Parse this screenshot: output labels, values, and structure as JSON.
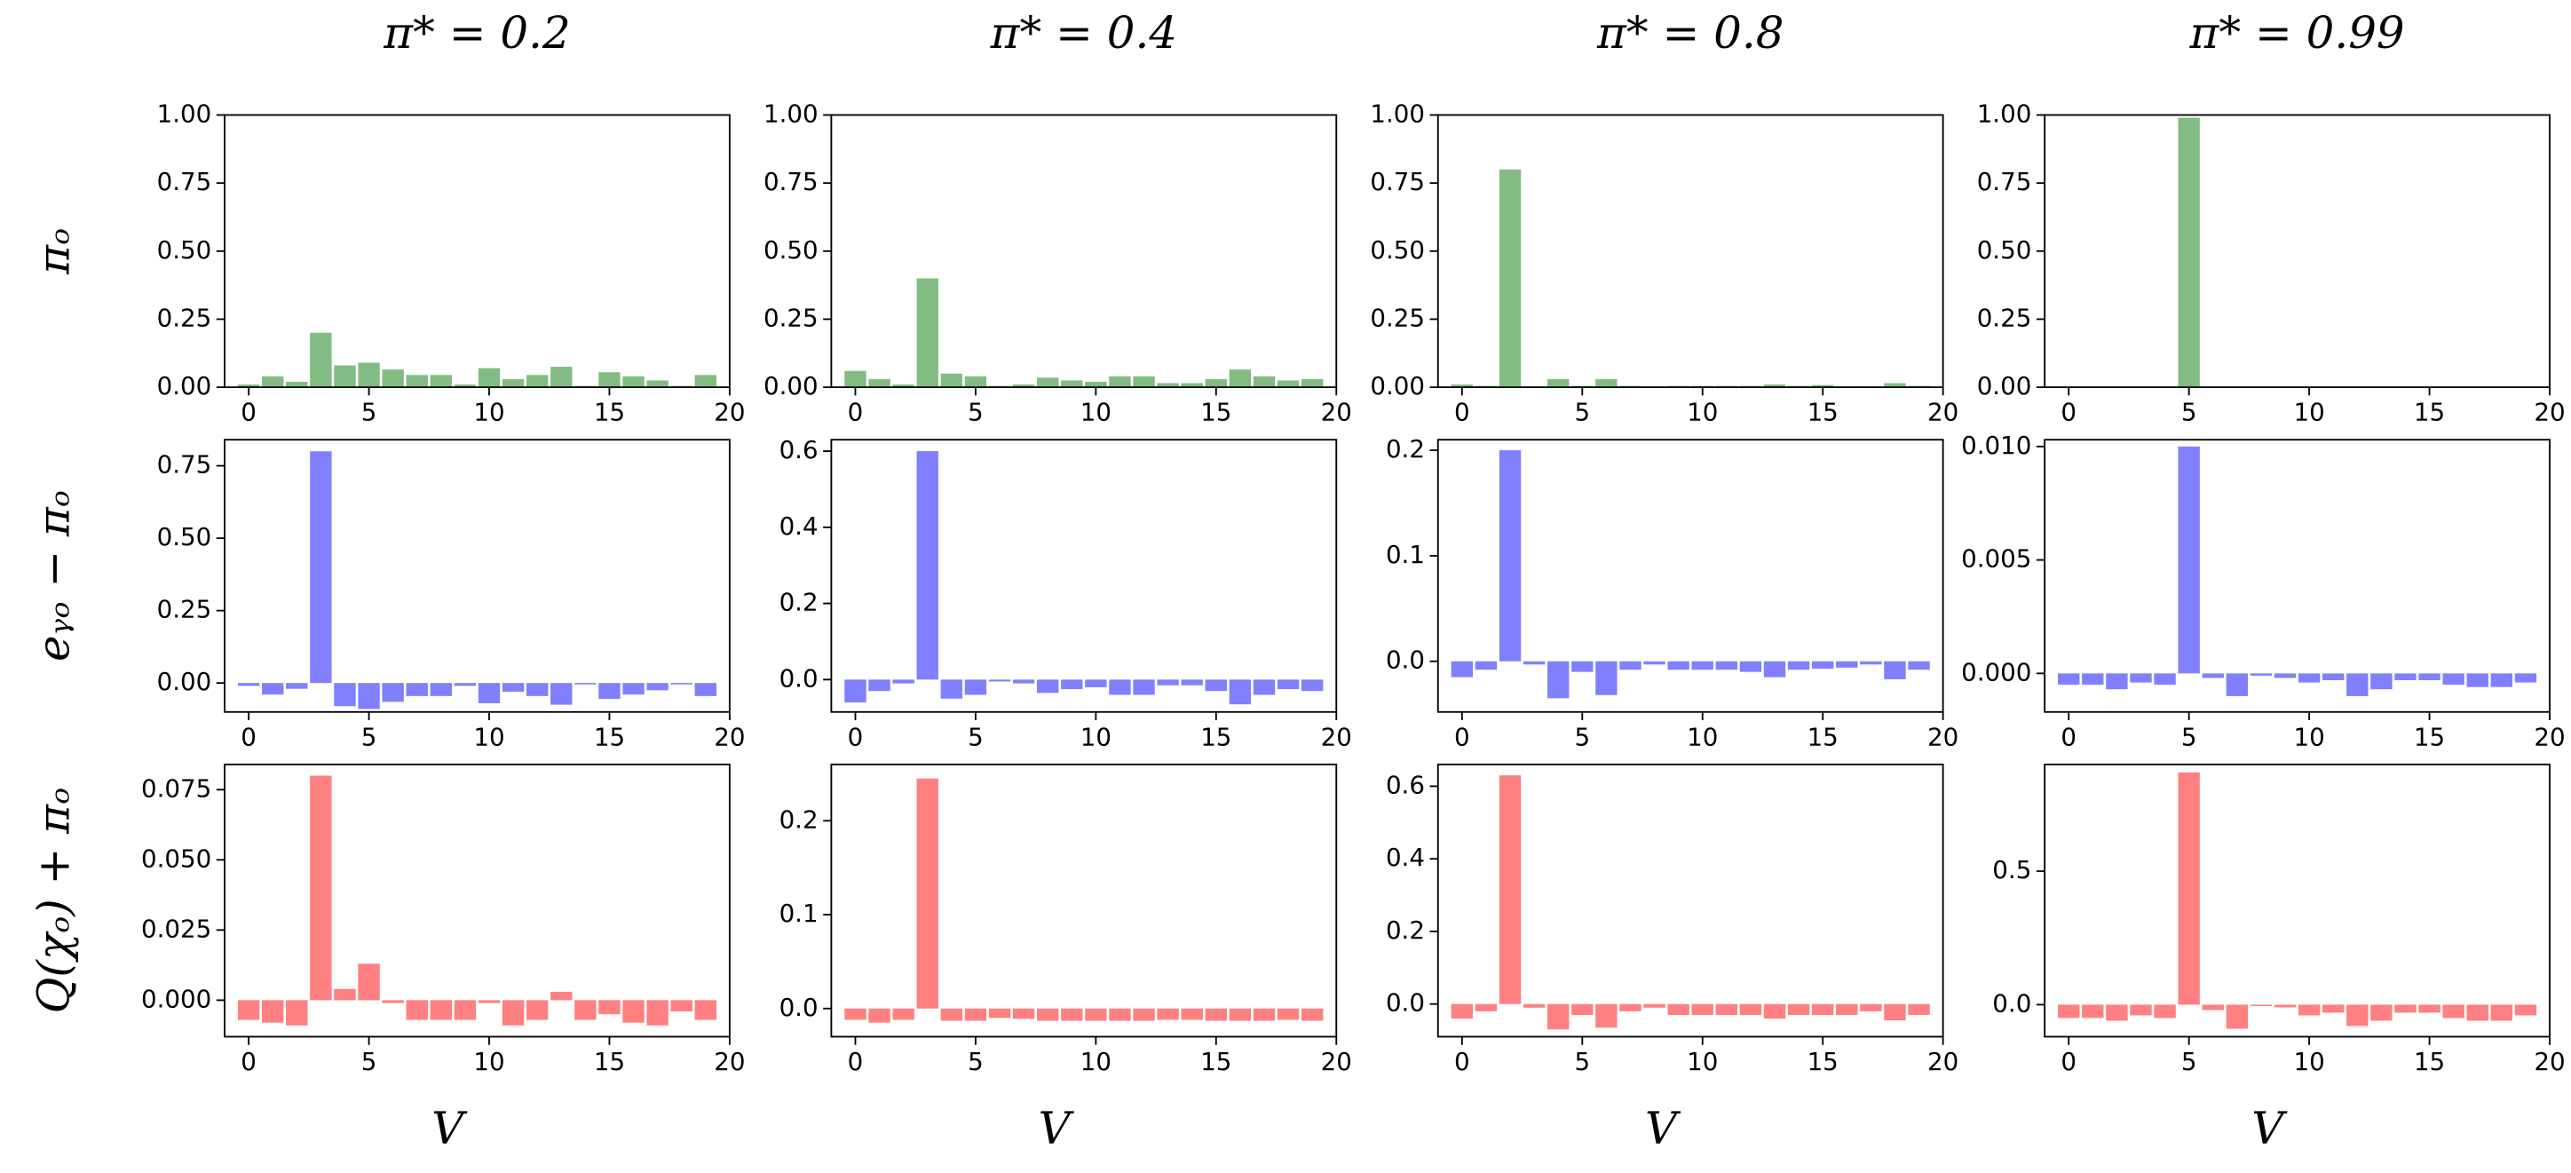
{
  "chart_data": [
    {
      "type": "bar",
      "title": "π* = 0.2",
      "ylabel": "πₒ",
      "color": "#82bc82",
      "x": [
        0,
        1,
        2,
        3,
        4,
        5,
        6,
        7,
        8,
        9,
        10,
        11,
        12,
        13,
        14,
        15,
        16,
        17,
        18,
        19
      ],
      "values": [
        0.01,
        0.04,
        0.02,
        0.2,
        0.08,
        0.09,
        0.065,
        0.045,
        0.045,
        0.01,
        0.07,
        0.03,
        0.045,
        0.075,
        0.005,
        0.055,
        0.04,
        0.025,
        0.005,
        0.045
      ],
      "xlim": [
        -1,
        20
      ],
      "xticks": [
        0,
        5,
        10,
        15,
        20
      ],
      "ylim": [
        0,
        1
      ],
      "yticks": [
        {
          "value": 0,
          "label": "0.00"
        },
        {
          "value": 0.25,
          "label": "0.25"
        },
        {
          "value": 0.5,
          "label": "0.50"
        },
        {
          "value": 0.75,
          "label": "0.75"
        },
        {
          "value": 1,
          "label": "1.00"
        }
      ]
    },
    {
      "type": "bar",
      "title": "π* = 0.4",
      "color": "#82bc82",
      "x": [
        0,
        1,
        2,
        3,
        4,
        5,
        6,
        7,
        8,
        9,
        10,
        11,
        12,
        13,
        14,
        15,
        16,
        17,
        18,
        19
      ],
      "values": [
        0.06,
        0.03,
        0.01,
        0.4,
        0.05,
        0.04,
        0.005,
        0.01,
        0.035,
        0.025,
        0.02,
        0.04,
        0.04,
        0.015,
        0.015,
        0.03,
        0.065,
        0.04,
        0.025,
        0.03
      ],
      "xlim": [
        -1,
        20
      ],
      "xticks": [
        0,
        5,
        10,
        15,
        20
      ],
      "ylim": [
        0,
        1
      ],
      "yticks": [
        {
          "value": 0,
          "label": "0.00"
        },
        {
          "value": 0.25,
          "label": "0.25"
        },
        {
          "value": 0.5,
          "label": "0.50"
        },
        {
          "value": 0.75,
          "label": "0.75"
        },
        {
          "value": 1,
          "label": "1.00"
        }
      ]
    },
    {
      "type": "bar",
      "title": "π* = 0.8",
      "color": "#82bc82",
      "x": [
        0,
        1,
        2,
        3,
        4,
        5,
        6,
        7,
        8,
        9,
        10,
        11,
        12,
        13,
        14,
        15,
        16,
        17,
        18,
        19
      ],
      "values": [
        0.01,
        0.005,
        0.8,
        0.003,
        0.03,
        0.005,
        0.03,
        0.005,
        0.003,
        0.005,
        0.005,
        0.005,
        0.005,
        0.01,
        0.005,
        0.008,
        0.003,
        0.003,
        0.015,
        0.005
      ],
      "xlim": [
        -1,
        20
      ],
      "xticks": [
        0,
        5,
        10,
        15,
        20
      ],
      "ylim": [
        0,
        1
      ],
      "yticks": [
        {
          "value": 0,
          "label": "0.00"
        },
        {
          "value": 0.25,
          "label": "0.25"
        },
        {
          "value": 0.5,
          "label": "0.50"
        },
        {
          "value": 0.75,
          "label": "0.75"
        },
        {
          "value": 1,
          "label": "1.00"
        }
      ]
    },
    {
      "type": "bar",
      "title": "π* = 0.99",
      "color": "#82bc82",
      "x": [
        0,
        1,
        2,
        3,
        4,
        5,
        6,
        7,
        8,
        9,
        10,
        11,
        12,
        13,
        14,
        15,
        16,
        17,
        18,
        19
      ],
      "values": [
        0,
        0,
        0,
        0,
        0,
        0.99,
        0,
        0,
        0,
        0,
        0,
        0,
        0,
        0,
        0,
        0,
        0,
        0,
        0,
        0
      ],
      "xlim": [
        -1,
        20
      ],
      "xticks": [
        0,
        5,
        10,
        15,
        20
      ],
      "ylim": [
        0,
        1
      ],
      "yticks": [
        {
          "value": 0,
          "label": "0.00"
        },
        {
          "value": 0.25,
          "label": "0.25"
        },
        {
          "value": 0.5,
          "label": "0.50"
        },
        {
          "value": 0.75,
          "label": "0.75"
        },
        {
          "value": 1,
          "label": "1.00"
        }
      ]
    },
    {
      "type": "bar",
      "ylabel": "eᵧₒ − πₒ",
      "color": "#8080ff",
      "x": [
        0,
        1,
        2,
        3,
        4,
        5,
        6,
        7,
        8,
        9,
        10,
        11,
        12,
        13,
        14,
        15,
        16,
        17,
        18,
        19
      ],
      "values": [
        -0.01,
        -0.04,
        -0.02,
        0.8,
        -0.08,
        -0.09,
        -0.065,
        -0.045,
        -0.045,
        -0.01,
        -0.07,
        -0.03,
        -0.045,
        -0.075,
        -0.005,
        -0.055,
        -0.04,
        -0.025,
        -0.005,
        -0.045
      ],
      "xlim": [
        -1,
        20
      ],
      "xticks": [
        0,
        5,
        10,
        15,
        20
      ],
      "ylim": [
        -0.1,
        0.84
      ],
      "yticks": [
        {
          "value": 0,
          "label": "0.00"
        },
        {
          "value": 0.25,
          "label": "0.25"
        },
        {
          "value": 0.5,
          "label": "0.50"
        },
        {
          "value": 0.75,
          "label": "0.75"
        }
      ]
    },
    {
      "type": "bar",
      "color": "#8080ff",
      "x": [
        0,
        1,
        2,
        3,
        4,
        5,
        6,
        7,
        8,
        9,
        10,
        11,
        12,
        13,
        14,
        15,
        16,
        17,
        18,
        19
      ],
      "values": [
        -0.06,
        -0.03,
        -0.01,
        0.6,
        -0.05,
        -0.04,
        -0.005,
        -0.01,
        -0.035,
        -0.025,
        -0.02,
        -0.04,
        -0.04,
        -0.015,
        -0.015,
        -0.03,
        -0.065,
        -0.04,
        -0.025,
        -0.03
      ],
      "xlim": [
        -1,
        20
      ],
      "xticks": [
        0,
        5,
        10,
        15,
        20
      ],
      "ylim": [
        -0.085,
        0.63
      ],
      "yticks": [
        {
          "value": 0,
          "label": "0.0"
        },
        {
          "value": 0.2,
          "label": "0.2"
        },
        {
          "value": 0.4,
          "label": "0.4"
        },
        {
          "value": 0.6,
          "label": "0.6"
        }
      ]
    },
    {
      "type": "bar",
      "color": "#8080ff",
      "x": [
        0,
        1,
        2,
        3,
        4,
        5,
        6,
        7,
        8,
        9,
        10,
        11,
        12,
        13,
        14,
        15,
        16,
        17,
        18,
        19
      ],
      "values": [
        -0.015,
        -0.008,
        0.2,
        -0.003,
        -0.035,
        -0.01,
        -0.032,
        -0.008,
        -0.003,
        -0.008,
        -0.008,
        -0.008,
        -0.01,
        -0.015,
        -0.008,
        -0.007,
        -0.006,
        -0.003,
        -0.017,
        -0.008
      ],
      "xlim": [
        -1,
        20
      ],
      "xticks": [
        0,
        5,
        10,
        15,
        20
      ],
      "ylim": [
        -0.048,
        0.21
      ],
      "yticks": [
        {
          "value": 0,
          "label": "0.0"
        },
        0.1,
        0.2
      ]
    },
    {
      "type": "bar",
      "color": "#8080ff",
      "x": [
        0,
        1,
        2,
        3,
        4,
        5,
        6,
        7,
        8,
        9,
        10,
        11,
        12,
        13,
        14,
        15,
        16,
        17,
        18,
        19
      ],
      "values": [
        -0.0005,
        -0.0005,
        -0.0007,
        -0.0004,
        -0.0005,
        0.01,
        -0.0002,
        -0.001,
        -0.0001,
        -0.0002,
        -0.0004,
        -0.0003,
        -0.001,
        -0.0007,
        -0.0003,
        -0.0003,
        -0.0005,
        -0.0006,
        -0.0006,
        -0.0004
      ],
      "xlim": [
        -1,
        20
      ],
      "xticks": [
        0,
        5,
        10,
        15,
        20
      ],
      "ylim": [
        -0.0017,
        0.0103
      ],
      "yticks": [
        {
          "value": 0,
          "label": "0.000"
        },
        {
          "value": 0.005,
          "label": "0.005"
        },
        {
          "value": 0.01,
          "label": "0.010"
        }
      ]
    },
    {
      "type": "bar",
      "ylabel": "Q(χₒ) + πₒ",
      "xlabel": "V",
      "color": "#ff8080",
      "x": [
        0,
        1,
        2,
        3,
        4,
        5,
        6,
        7,
        8,
        9,
        10,
        11,
        12,
        13,
        14,
        15,
        16,
        17,
        18,
        19
      ],
      "values": [
        -0.007,
        -0.008,
        -0.009,
        0.08,
        0.004,
        0.013,
        -0.001,
        -0.007,
        -0.007,
        -0.007,
        -0.001,
        -0.009,
        -0.007,
        0.003,
        -0.007,
        -0.005,
        -0.008,
        -0.009,
        -0.004,
        -0.007
      ],
      "xlim": [
        -1,
        20
      ],
      "xticks": [
        0,
        5,
        10,
        15,
        20
      ],
      "ylim": [
        -0.013,
        0.084
      ],
      "yticks": [
        {
          "value": 0,
          "label": "0.000"
        },
        {
          "value": 0.025,
          "label": "0.025"
        },
        {
          "value": 0.05,
          "label": "0.050"
        },
        {
          "value": 0.075,
          "label": "0.075"
        }
      ]
    },
    {
      "type": "bar",
      "xlabel": "V",
      "color": "#ff8080",
      "x": [
        0,
        1,
        2,
        3,
        4,
        5,
        6,
        7,
        8,
        9,
        10,
        11,
        12,
        13,
        14,
        15,
        16,
        17,
        18,
        19
      ],
      "values": [
        -0.012,
        -0.015,
        -0.012,
        0.245,
        -0.013,
        -0.013,
        -0.01,
        -0.011,
        -0.013,
        -0.013,
        -0.013,
        -0.013,
        -0.013,
        -0.012,
        -0.012,
        -0.013,
        -0.013,
        -0.013,
        -0.012,
        -0.013
      ],
      "xlim": [
        -1,
        20
      ],
      "xticks": [
        0,
        5,
        10,
        15,
        20
      ],
      "ylim": [
        -0.03,
        0.26
      ],
      "yticks": [
        {
          "value": 0,
          "label": "0.0"
        },
        0.1,
        0.2
      ]
    },
    {
      "type": "bar",
      "xlabel": "V",
      "color": "#ff8080",
      "x": [
        0,
        1,
        2,
        3,
        4,
        5,
        6,
        7,
        8,
        9,
        10,
        11,
        12,
        13,
        14,
        15,
        16,
        17,
        18,
        19
      ],
      "values": [
        -0.04,
        -0.02,
        0.63,
        -0.01,
        -0.07,
        -0.03,
        -0.065,
        -0.02,
        -0.01,
        -0.03,
        -0.03,
        -0.03,
        -0.03,
        -0.04,
        -0.03,
        -0.03,
        -0.03,
        -0.02,
        -0.045,
        -0.03
      ],
      "xlim": [
        -1,
        20
      ],
      "xticks": [
        0,
        5,
        10,
        15,
        20
      ],
      "ylim": [
        -0.09,
        0.66
      ],
      "yticks": [
        {
          "value": 0,
          "label": "0.0"
        },
        0.2,
        0.4,
        0.6
      ]
    },
    {
      "type": "bar",
      "xlabel": "V",
      "color": "#ff8080",
      "x": [
        0,
        1,
        2,
        3,
        4,
        5,
        6,
        7,
        8,
        9,
        10,
        11,
        12,
        13,
        14,
        15,
        16,
        17,
        18,
        19
      ],
      "values": [
        -0.05,
        -0.05,
        -0.06,
        -0.04,
        -0.05,
        0.87,
        -0.02,
        -0.09,
        -0.005,
        -0.01,
        -0.04,
        -0.03,
        -0.08,
        -0.06,
        -0.03,
        -0.03,
        -0.05,
        -0.06,
        -0.06,
        -0.04
      ],
      "xlim": [
        -1,
        20
      ],
      "xticks": [
        0,
        5,
        10,
        15,
        20
      ],
      "ylim": [
        -0.12,
        0.9
      ],
      "yticks": [
        {
          "value": 0,
          "label": "0.0"
        },
        0.5
      ]
    }
  ]
}
